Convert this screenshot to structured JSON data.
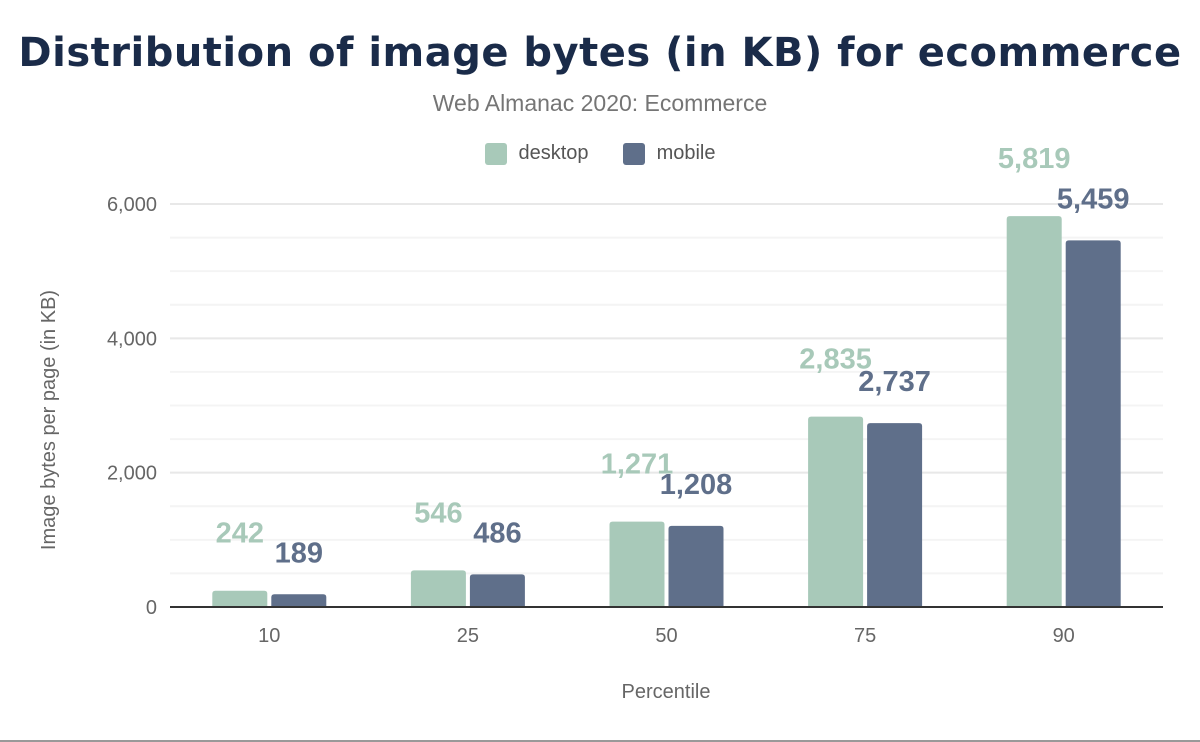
{
  "chart_data": {
    "type": "bar",
    "title": "Distribution of image bytes (in KB) for ecommerce",
    "subtitle": "Web Almanac 2020: Ecommerce",
    "xlabel": "Percentile",
    "ylabel": "Image bytes per page (in KB)",
    "categories": [
      "10",
      "25",
      "50",
      "75",
      "90"
    ],
    "ylim": [
      0,
      6000
    ],
    "yticks": [
      0,
      2000,
      4000,
      6000
    ],
    "ytick_labels": [
      "0",
      "2,000",
      "4,000",
      "6,000"
    ],
    "grid": true,
    "legend": "top",
    "series": [
      {
        "name": "desktop",
        "color": "#a8c9b9",
        "values": [
          242,
          546,
          1271,
          2835,
          5819
        ],
        "labels": [
          "242",
          "546",
          "1,271",
          "2,835",
          "5,819"
        ]
      },
      {
        "name": "mobile",
        "color": "#5f6f8a",
        "values": [
          189,
          486,
          1208,
          2737,
          5459
        ],
        "labels": [
          "189",
          "486",
          "1,208",
          "2,737",
          "5,459"
        ]
      }
    ]
  }
}
